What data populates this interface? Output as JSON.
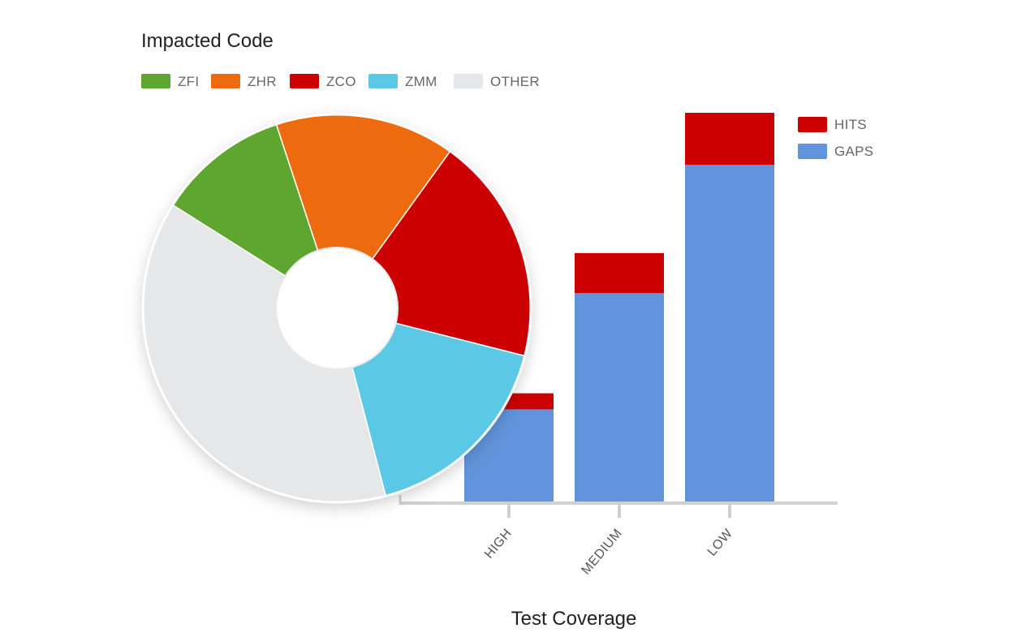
{
  "chart_data": [
    {
      "type": "bar",
      "stacked": true,
      "title": "",
      "xlabel": "Test Coverage",
      "ylabel": "",
      "categories": [
        "HIGH",
        "MEDIUM",
        "LOW"
      ],
      "series": [
        {
          "name": "GAPS",
          "color": "#6194dc",
          "values": [
            23,
            52,
            84
          ]
        },
        {
          "name": "HITS",
          "color": "#cc0000",
          "values": [
            4,
            10,
            13
          ]
        }
      ],
      "ylim": [
        0,
        97
      ],
      "legend": "top-right",
      "grid": false
    },
    {
      "type": "pie",
      "donut": true,
      "title": "Impacted Code",
      "legend": "top",
      "slices": [
        {
          "label": "ZFI",
          "value": 11,
          "color": "#5ea630"
        },
        {
          "label": "ZHR",
          "value": 15,
          "color": "#ee6a0e"
        },
        {
          "label": "ZCO",
          "value": 19,
          "color": "#cc0000"
        },
        {
          "label": "ZMM",
          "value": 17,
          "color": "#5bc8e6"
        },
        {
          "label": "OTHER",
          "value": 38,
          "color": "#e6e7e8"
        }
      ]
    }
  ]
}
